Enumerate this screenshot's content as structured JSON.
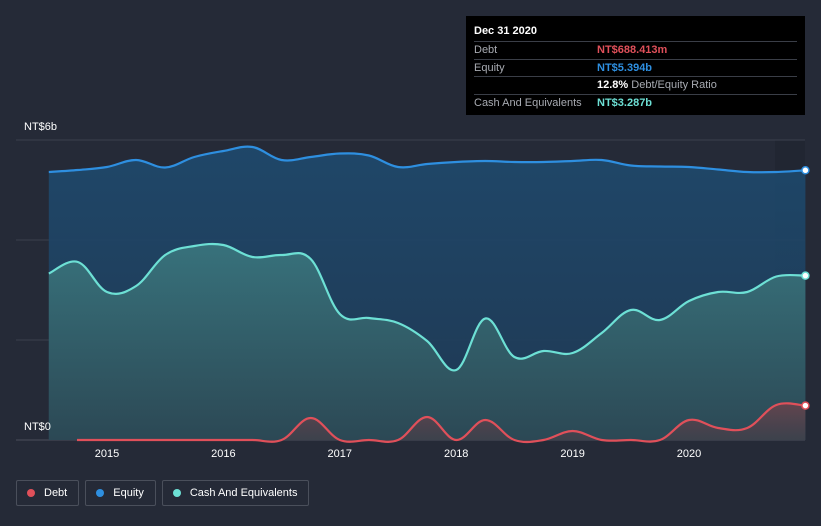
{
  "tooltip": {
    "date": "Dec 31 2020",
    "debt_label": "Debt",
    "debt_value": "NT$688.413m",
    "equity_label": "Equity",
    "equity_value": "NT$5.394b",
    "ratio_value": "12.8%",
    "ratio_label": "Debt/Equity Ratio",
    "cash_label": "Cash And Equivalents",
    "cash_value": "NT$3.287b"
  },
  "legend": [
    {
      "label": "Debt",
      "color": "#e0505a"
    },
    {
      "label": "Equity",
      "color": "#2e8fe0"
    },
    {
      "label": "Cash And Equivalents",
      "color": "#6de0d5"
    }
  ],
  "colors": {
    "debt": "#e0505a",
    "equity": "#2e8fe0",
    "cash": "#6de0d5",
    "background": "#252a37"
  },
  "chart_data": {
    "type": "area",
    "ytick_labels": [
      "NT$6b",
      "NT$0"
    ],
    "ylim": [
      0,
      6
    ],
    "xtick_labels": [
      "2015",
      "2016",
      "2017",
      "2018",
      "2019",
      "2020"
    ],
    "xlim": [
      2014.5,
      2021.0
    ],
    "grid": true,
    "legend_position": "bottom-left",
    "series": [
      {
        "name": "Equity",
        "x": [
          2014.5,
          2014.75,
          2015.0,
          2015.25,
          2015.5,
          2015.75,
          2016.0,
          2016.25,
          2016.5,
          2016.75,
          2017.0,
          2017.25,
          2017.5,
          2017.75,
          2018.0,
          2018.25,
          2018.5,
          2018.75,
          2019.0,
          2019.25,
          2019.5,
          2019.75,
          2020.0,
          2020.25,
          2020.5,
          2020.75,
          2021.0
        ],
        "values": [
          5.36,
          5.4,
          5.46,
          5.6,
          5.45,
          5.66,
          5.78,
          5.86,
          5.6,
          5.66,
          5.73,
          5.69,
          5.46,
          5.52,
          5.56,
          5.58,
          5.56,
          5.56,
          5.58,
          5.6,
          5.49,
          5.47,
          5.46,
          5.41,
          5.36,
          5.36,
          5.394
        ]
      },
      {
        "name": "Cash And Equivalents",
        "x": [
          2014.5,
          2014.75,
          2015.0,
          2015.25,
          2015.5,
          2015.75,
          2016.0,
          2016.25,
          2016.5,
          2016.75,
          2017.0,
          2017.25,
          2017.5,
          2017.75,
          2018.0,
          2018.25,
          2018.5,
          2018.75,
          2019.0,
          2019.25,
          2019.5,
          2019.75,
          2020.0,
          2020.25,
          2020.5,
          2020.75,
          2021.0
        ],
        "values": [
          3.33,
          3.56,
          2.96,
          3.08,
          3.7,
          3.88,
          3.9,
          3.66,
          3.7,
          3.62,
          2.52,
          2.44,
          2.34,
          1.98,
          1.4,
          2.43,
          1.66,
          1.78,
          1.74,
          2.14,
          2.6,
          2.4,
          2.78,
          2.96,
          2.96,
          3.27,
          3.287
        ]
      },
      {
        "name": "Debt",
        "x": [
          2014.5,
          2014.75,
          2015.0,
          2015.25,
          2015.5,
          2015.75,
          2016.0,
          2016.25,
          2016.5,
          2016.75,
          2017.0,
          2017.25,
          2017.5,
          2017.75,
          2018.0,
          2018.25,
          2018.5,
          2018.75,
          2019.0,
          2019.25,
          2019.5,
          2019.75,
          2020.0,
          2020.25,
          2020.5,
          2020.75,
          2021.0
        ],
        "values": [
          null,
          0.0,
          0.0,
          0.0,
          0.0,
          0.0,
          0.0,
          0.0,
          0.0,
          0.44,
          0.0,
          0.0,
          0.0,
          0.46,
          0.0,
          0.4,
          0.0,
          0.0,
          0.18,
          0.0,
          0.0,
          0.0,
          0.4,
          0.24,
          0.24,
          0.7,
          0.688
        ]
      }
    ]
  }
}
